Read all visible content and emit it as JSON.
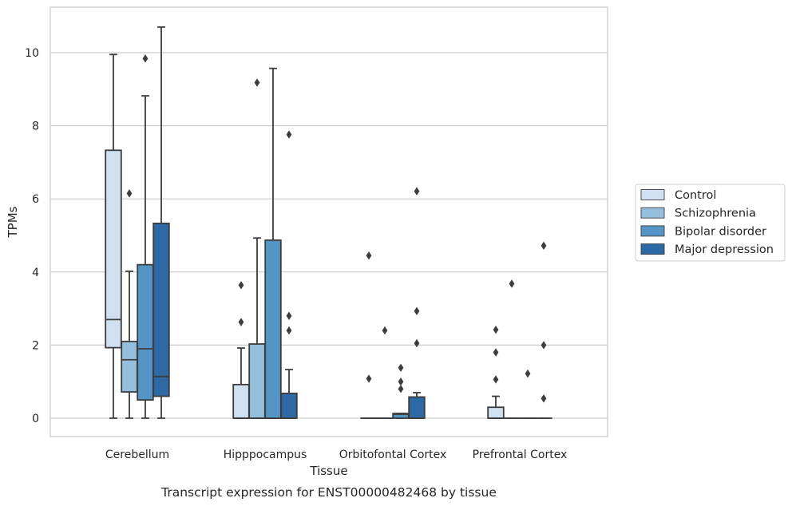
{
  "caption": "Transcript expression for ENST00000482468 by tissue",
  "chart_data": {
    "type": "box",
    "title": "",
    "xlabel": "Tissue",
    "ylabel": "TPMs",
    "ylim": [
      -0.5,
      11.25
    ],
    "yticks": [
      0,
      2,
      4,
      6,
      8,
      10
    ],
    "grid": "horizontal",
    "legend_position": "right",
    "categories": [
      "Cerebellum",
      "Hipppocampus",
      "Orbitofontal Cortex",
      "Prefrontal Cortex"
    ],
    "series": [
      {
        "name": "Control",
        "color": "#d0e0f0",
        "boxes": [
          {
            "whislo": 0,
            "q1": 1.93,
            "med": 2.7,
            "q3": 7.33,
            "whishi": 9.95,
            "fliers": []
          },
          {
            "whislo": 0,
            "q1": 0,
            "med": 0,
            "q3": 0.92,
            "whishi": 1.92,
            "fliers": [
              2.63,
              3.64
            ]
          },
          {
            "whislo": 0,
            "q1": 0,
            "med": 0,
            "q3": 0,
            "whishi": 0,
            "fliers": [
              1.08,
              4.45
            ]
          },
          {
            "whislo": 0,
            "q1": 0,
            "med": 0,
            "q3": 0.3,
            "whishi": 0.6,
            "fliers": [
              1.06,
              1.8,
              2.42
            ]
          }
        ]
      },
      {
        "name": "Schizophrenia",
        "color": "#94c0de",
        "boxes": [
          {
            "whislo": 0,
            "q1": 0.72,
            "med": 1.6,
            "q3": 2.1,
            "whishi": 4.02,
            "fliers": [
              6.15
            ]
          },
          {
            "whislo": 0,
            "q1": 0,
            "med": 0,
            "q3": 2.03,
            "whishi": 4.93,
            "fliers": [
              9.18
            ]
          },
          {
            "whislo": 0,
            "q1": 0,
            "med": 0,
            "q3": 0,
            "whishi": 0,
            "fliers": [
              2.4
            ]
          },
          {
            "whislo": 0,
            "q1": 0,
            "med": 0,
            "q3": 0,
            "whishi": 0,
            "fliers": [
              3.68
            ]
          }
        ]
      },
      {
        "name": "Bipolar disorder",
        "color": "#5396c6",
        "boxes": [
          {
            "whislo": 0,
            "q1": 0.5,
            "med": 1.9,
            "q3": 4.2,
            "whishi": 8.82,
            "fliers": [
              9.84
            ]
          },
          {
            "whislo": 0,
            "q1": 0,
            "med": 0,
            "q3": 4.87,
            "whishi": 9.57,
            "fliers": []
          },
          {
            "whislo": 0,
            "q1": 0,
            "med": 0.11,
            "q3": 0.13,
            "whishi": 0.13,
            "fliers": [
              0.8,
              1.0,
              1.38
            ]
          },
          {
            "whislo": 0,
            "q1": 0,
            "med": 0,
            "q3": 0,
            "whishi": 0,
            "fliers": [
              1.22
            ]
          }
        ]
      },
      {
        "name": "Major depression",
        "color": "#2b6aa5",
        "boxes": [
          {
            "whislo": 0,
            "q1": 0.6,
            "med": 1.14,
            "q3": 5.33,
            "whishi": 10.7,
            "fliers": []
          },
          {
            "whislo": 0,
            "q1": 0,
            "med": 0,
            "q3": 0.68,
            "whishi": 1.33,
            "fliers": [
              2.4,
              2.8,
              7.76
            ]
          },
          {
            "whislo": 0,
            "q1": 0,
            "med": 0,
            "q3": 0.58,
            "whishi": 0.7,
            "fliers": [
              2.05,
              2.93,
              6.21
            ]
          },
          {
            "whislo": 0,
            "q1": 0,
            "med": 0,
            "q3": 0,
            "whishi": 0,
            "fliers": [
              0.54,
              2.0,
              4.72
            ]
          }
        ]
      }
    ]
  }
}
